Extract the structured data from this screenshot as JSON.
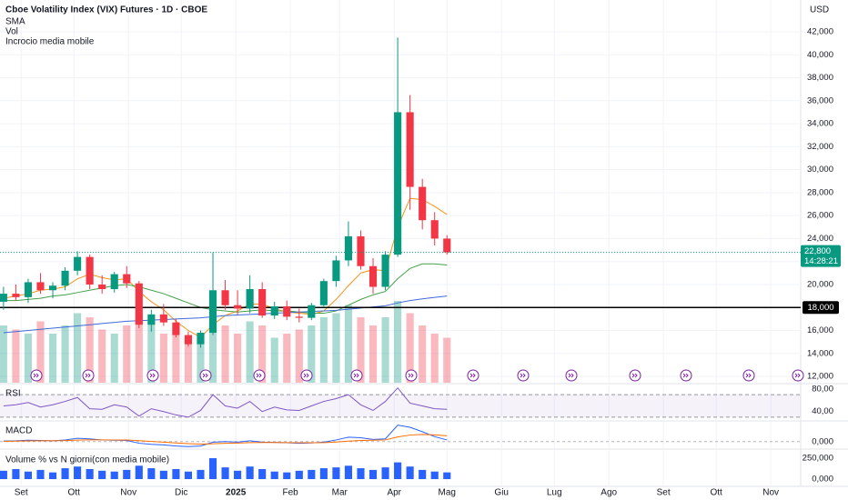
{
  "chart_data": {
    "type": "candlestick",
    "title": "Cboe Volatility Index (VIX) Futures · 1D · CBOE",
    "indicator_labels": [
      "SMA",
      "Vol",
      "Incrocio media mobile"
    ],
    "currency": "USD",
    "x": [
      2,
      9,
      16,
      23,
      30,
      37,
      44,
      51,
      58,
      65,
      72,
      79,
      86,
      93,
      100,
      107,
      114,
      121,
      128,
      135,
      142,
      149,
      156,
      163,
      170,
      177,
      184,
      191,
      198,
      205,
      212,
      219,
      226,
      233,
      240,
      247,
      254
    ],
    "open": [
      18500,
      19200,
      18900,
      20200,
      19500,
      19900,
      21200,
      22400,
      20000,
      19600,
      20900,
      20100,
      16500,
      17400,
      16700,
      15600,
      14800,
      15800,
      19500,
      18200,
      17900,
      19600,
      17300,
      18100,
      17200,
      17100,
      18200,
      20300,
      22100,
      24200,
      21600,
      19800,
      22600,
      35000,
      28500,
      25600,
      24000
    ],
    "high": [
      19800,
      20000,
      20500,
      21000,
      20200,
      21500,
      22900,
      22600,
      20800,
      21100,
      21600,
      20300,
      17800,
      18300,
      17000,
      15900,
      16000,
      22800,
      20400,
      19500,
      20800,
      20200,
      18500,
      18600,
      17900,
      18400,
      20500,
      22500,
      25500,
      24700,
      22300,
      22900,
      41500,
      36500,
      29200,
      26300,
      24300
    ],
    "low": [
      17800,
      18600,
      18400,
      19200,
      18800,
      19500,
      20800,
      19600,
      19200,
      19300,
      19700,
      16200,
      15900,
      16400,
      15400,
      14600,
      14500,
      15600,
      17800,
      17400,
      17500,
      17100,
      17000,
      16900,
      16700,
      16900,
      18000,
      19800,
      21600,
      21300,
      19200,
      19500,
      22400,
      26500,
      24800,
      23400,
      22600
    ],
    "close": [
      19200,
      18900,
      20200,
      19500,
      19900,
      21200,
      22400,
      20000,
      19600,
      20900,
      20100,
      16500,
      17400,
      16700,
      15600,
      14800,
      15800,
      19500,
      18200,
      17900,
      19600,
      17300,
      18100,
      17200,
      17100,
      18200,
      20300,
      22100,
      24200,
      21600,
      19800,
      22600,
      35000,
      28500,
      25600,
      24000,
      22800
    ],
    "up_color": "#089981",
    "down_color": "#f23645",
    "xlim": [
      0,
      455
    ],
    "xticks": [
      {
        "value": 12,
        "label": "Set"
      },
      {
        "value": 42,
        "label": "Ott"
      },
      {
        "value": 73,
        "label": "Nov"
      },
      {
        "value": 103,
        "label": "Dic"
      },
      {
        "value": 134,
        "label": "2025"
      },
      {
        "value": 165,
        "label": "Feb"
      },
      {
        "value": 193,
        "label": "Mar"
      },
      {
        "value": 224,
        "label": "Apr"
      },
      {
        "value": 254,
        "label": "Mag"
      },
      {
        "value": 285,
        "label": "Giu"
      },
      {
        "value": 315,
        "label": "Lug"
      },
      {
        "value": 346,
        "label": "Ago"
      },
      {
        "value": 377,
        "label": "Set"
      },
      {
        "value": 407,
        "label": "Ott"
      },
      {
        "value": 438,
        "label": "Nov"
      }
    ],
    "ylim": [
      11450,
      44770
    ],
    "yticks": [
      {
        "value": 12000,
        "label": "12,000"
      },
      {
        "value": 14000,
        "label": "14,000"
      },
      {
        "value": 16000,
        "label": "16,000"
      },
      {
        "value": 18000,
        "label": "18,000"
      },
      {
        "value": 20000,
        "label": "20,000"
      },
      {
        "value": 22000,
        "label": "22,000"
      },
      {
        "value": 24000,
        "label": "24,000"
      },
      {
        "value": 26000,
        "label": "26,000"
      },
      {
        "value": 28000,
        "label": "28,000"
      },
      {
        "value": 30000,
        "label": "30,000"
      },
      {
        "value": 32000,
        "label": "32,000"
      },
      {
        "value": 34000,
        "label": "34,000"
      },
      {
        "value": 36000,
        "label": "36,000"
      },
      {
        "value": 38000,
        "label": "38,000"
      },
      {
        "value": 40000,
        "label": "40,000"
      },
      {
        "value": 42000,
        "label": "42,000"
      }
    ],
    "grid": true,
    "last_price": {
      "value": 22800,
      "label": "22,800",
      "countdown": "14:28:21"
    },
    "hline": {
      "value": 18000,
      "label": "18,000"
    },
    "series": [
      {
        "color": "#f7931a",
        "values": [
          18800,
          19000,
          19200,
          19500,
          19600,
          19800,
          20500,
          20900,
          20600,
          20400,
          20500,
          19400,
          18500,
          17800,
          16800,
          16000,
          15400,
          16500,
          17300,
          17700,
          18300,
          18300,
          17900,
          17600,
          17500,
          17400,
          17700,
          18700,
          19900,
          21000,
          21300,
          21200,
          25000,
          27500,
          27400,
          26800,
          26100
        ]
      },
      {
        "color": "#43a047",
        "values": [
          18600,
          18600,
          18700,
          18800,
          19000,
          19100,
          19300,
          19500,
          19700,
          19900,
          20000,
          19800,
          19500,
          19200,
          18800,
          18400,
          18000,
          17800,
          17700,
          17600,
          17700,
          17800,
          17700,
          17700,
          17600,
          17500,
          17500,
          17700,
          18200,
          18700,
          19100,
          19400,
          20500,
          21400,
          21800,
          21800,
          21700
        ]
      },
      {
        "color": "#3f6ad8",
        "values": [
          15800,
          15900,
          16000,
          16100,
          16200,
          16300,
          16400,
          16500,
          16600,
          16700,
          16800,
          16850,
          16900,
          16950,
          17000,
          17050,
          17100,
          17200,
          17300,
          17350,
          17400,
          17450,
          17500,
          17550,
          17600,
          17650,
          17700,
          17750,
          17850,
          17950,
          18050,
          18150,
          18400,
          18600,
          18750,
          18880,
          19000
        ]
      }
    ],
    "volume": {
      "values": [
        70000,
        65000,
        60000,
        75000,
        60000,
        70000,
        85000,
        80000,
        65000,
        60000,
        70000,
        85000,
        75000,
        60000,
        65000,
        55000,
        55000,
        95000,
        70000,
        60000,
        75000,
        70000,
        55000,
        60000,
        65000,
        70000,
        80000,
        85000,
        95000,
        80000,
        70000,
        80000,
        100000,
        85000,
        70000,
        60000,
        55000
      ]
    },
    "rsi": {
      "label": "RSI",
      "color": "#7e57c2",
      "ylim": [
        25,
        88
      ],
      "yticks": [
        {
          "value": 80,
          "label": "80,00"
        },
        {
          "value": 40,
          "label": "40,00"
        }
      ],
      "bands": [
        30,
        70
      ],
      "values": [
        50,
        52,
        56,
        48,
        52,
        58,
        65,
        45,
        44,
        52,
        48,
        32,
        45,
        40,
        34,
        30,
        42,
        70,
        50,
        46,
        58,
        40,
        48,
        43,
        42,
        50,
        58,
        63,
        70,
        52,
        42,
        58,
        82,
        55,
        50,
        45,
        44
      ]
    },
    "macd": {
      "label": "MACD",
      "ylim": [
        -1200,
        3600
      ],
      "yticks": [
        {
          "value": 0,
          "label": "0,000"
        }
      ],
      "series": [
        {
          "color": "#2962ff",
          "values": [
            100,
            150,
            250,
            200,
            150,
            300,
            600,
            500,
            300,
            250,
            200,
            -300,
            -500,
            -600,
            -800,
            -900,
            -800,
            -100,
            0,
            -100,
            150,
            -100,
            -150,
            -200,
            -300,
            -250,
            -100,
            300,
            800,
            700,
            400,
            500,
            3000,
            2600,
            1800,
            900,
            300
          ]
        },
        {
          "color": "#ff6d00",
          "values": [
            50,
            80,
            130,
            150,
            160,
            190,
            270,
            320,
            320,
            300,
            280,
            160,
            30,
            -100,
            -240,
            -370,
            -460,
            -390,
            -310,
            -270,
            -190,
            -170,
            -170,
            -180,
            -200,
            -210,
            -190,
            -90,
            90,
            210,
            250,
            300,
            840,
            1190,
            1310,
            1230,
            1050
          ]
        }
      ]
    },
    "volume_pct": {
      "label": "Volume % vs N giorni(con media mobile)",
      "color": "#2962ff",
      "ylim": [
        -76000,
        348000
      ],
      "yticks": [
        {
          "value": 250000,
          "label": "250,000"
        },
        {
          "value": 0,
          "label": "0,000"
        }
      ],
      "values": [
        100000,
        120000,
        90000,
        110000,
        80000,
        130000,
        150000,
        120000,
        100000,
        90000,
        110000,
        160000,
        130000,
        100000,
        120000,
        90000,
        110000,
        250000,
        140000,
        100000,
        150000,
        120000,
        90000,
        80000,
        100000,
        110000,
        130000,
        140000,
        160000,
        130000,
        110000,
        140000,
        200000,
        150000,
        110000,
        90000,
        80000
      ]
    }
  }
}
